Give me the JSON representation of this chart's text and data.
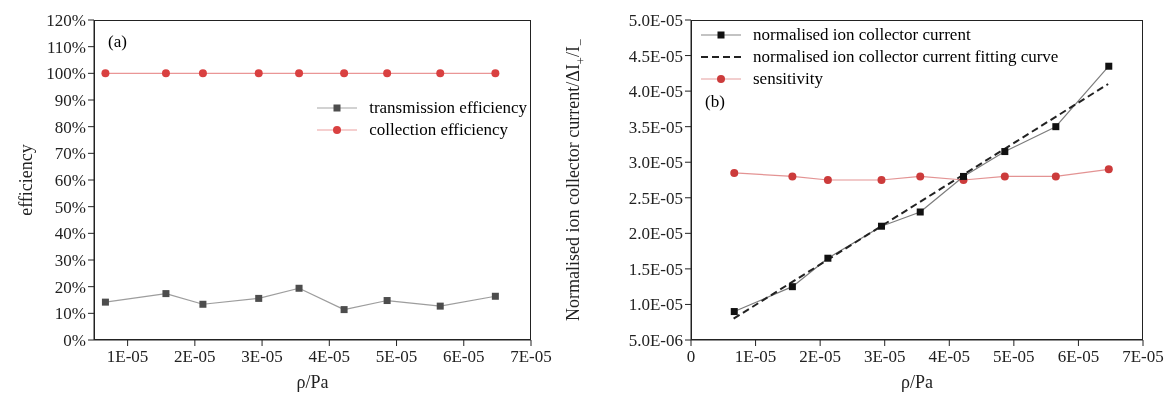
{
  "chart_data": [
    {
      "type": "line",
      "xlabel": "ρ/Pa",
      "ylabel": "efficiency",
      "annotations": [
        "(a)"
      ],
      "legend": "right",
      "grid": false,
      "x": [
        6.7e-06,
        1.57e-05,
        2.12e-05,
        2.95e-05,
        3.55e-05,
        4.22e-05,
        4.86e-05,
        5.65e-05,
        6.47e-05
      ],
      "xlim": [
        5e-06,
        7e-05
      ],
      "xticks": [
        {
          "value": 1e-05,
          "label": "1E-05"
        },
        {
          "value": 2e-05,
          "label": "2E-05"
        },
        {
          "value": 3e-05,
          "label": "3E-05"
        },
        {
          "value": 4e-05,
          "label": "4E-05"
        },
        {
          "value": 5e-05,
          "label": "5E-05"
        },
        {
          "value": 6e-05,
          "label": "6E-05"
        },
        {
          "value": 7e-05,
          "label": "7E-05"
        }
      ],
      "ylim": [
        0,
        120
      ],
      "yticks": [
        {
          "value": 0,
          "label": "0%"
        },
        {
          "value": 10,
          "label": "10%"
        },
        {
          "value": 20,
          "label": "20%"
        },
        {
          "value": 30,
          "label": "30%"
        },
        {
          "value": 40,
          "label": "40%"
        },
        {
          "value": 50,
          "label": "50%"
        },
        {
          "value": 60,
          "label": "60%"
        },
        {
          "value": 70,
          "label": "70%"
        },
        {
          "value": 80,
          "label": "80%"
        },
        {
          "value": 90,
          "label": "90%"
        },
        {
          "value": 100,
          "label": "100%"
        },
        {
          "value": 110,
          "label": "110%"
        },
        {
          "value": 120,
          "label": "120%"
        }
      ],
      "series": [
        {
          "name": "transmission efficiency",
          "color": "#4d4d4d",
          "marker": "square",
          "line_style": "solid",
          "values": [
            14.2,
            17.4,
            13.4,
            15.6,
            19.4,
            11.4,
            14.8,
            12.7,
            16.4
          ]
        },
        {
          "name": "collection efficiency",
          "color": "#d94040",
          "marker": "circle",
          "line_style": "solid",
          "values": [
            100,
            100,
            100,
            100,
            100,
            100,
            100,
            100,
            100
          ]
        }
      ]
    },
    {
      "type": "line",
      "xlabel": "ρ/Pa",
      "ylabel": "Normalised ion collector current/ΔI$_{+}$/I$_{−}$",
      "annotations": [
        "(b)"
      ],
      "legend": "top left",
      "grid": false,
      "x": [
        6.7e-06,
        1.57e-05,
        2.12e-05,
        2.95e-05,
        3.55e-05,
        4.22e-05,
        4.86e-05,
        5.65e-05,
        6.47e-05
      ],
      "xlim": [
        0,
        7e-05
      ],
      "xticks": [
        0,
        {
          "value": 1e-05,
          "label": "1E-05"
        },
        {
          "value": 2e-05,
          "label": "2E-05"
        },
        {
          "value": 3e-05,
          "label": "3E-05"
        },
        {
          "value": 4e-05,
          "label": "4E-05"
        },
        {
          "value": 5e-05,
          "label": "5E-05"
        },
        {
          "value": 6e-05,
          "label": "6E-05"
        },
        {
          "value": 7e-05,
          "label": "7E-05"
        }
      ],
      "ylim": [
        5e-06,
        5e-05
      ],
      "yticks": [
        {
          "value": 5e-06,
          "label": "5.0E-06"
        },
        {
          "value": 1e-05,
          "label": "1.0E-05"
        },
        {
          "value": 1.5e-05,
          "label": "1.5E-05"
        },
        {
          "value": 2e-05,
          "label": "2.0E-05"
        },
        {
          "value": 2.5e-05,
          "label": "2.5E-05"
        },
        {
          "value": 3e-05,
          "label": "3.0E-05"
        },
        {
          "value": 3.5e-05,
          "label": "3.5E-05"
        },
        {
          "value": 4e-05,
          "label": "4.0E-05"
        },
        {
          "value": 4.5e-05,
          "label": "4.5E-05"
        },
        {
          "value": 5e-05,
          "label": "5.0E-05"
        }
      ],
      "series": [
        {
          "name": "normalised ion collector current",
          "color": "#111111",
          "marker": "square",
          "line_style": "solid",
          "values": [
            9e-06,
            1.25e-05,
            1.65e-05,
            2.1e-05,
            2.3e-05,
            2.8e-05,
            3.15e-05,
            3.5e-05,
            4.35e-05
          ]
        },
        {
          "name": "normalised ion collector current fitting curve",
          "color": "#222222",
          "marker": "none",
          "line_style": "dashed",
          "x": [
            6.6e-06,
            6.46e-05
          ],
          "values": [
            8e-06,
            4.1e-05
          ]
        },
        {
          "name": "sensitivity",
          "color": "#cc3b3b",
          "marker": "circle",
          "line_style": "solid",
          "values": [
            2.85e-05,
            2.8e-05,
            2.75e-05,
            2.75e-05,
            2.8e-05,
            2.75e-05,
            2.8e-05,
            2.8e-05,
            2.9e-05
          ]
        }
      ]
    }
  ]
}
